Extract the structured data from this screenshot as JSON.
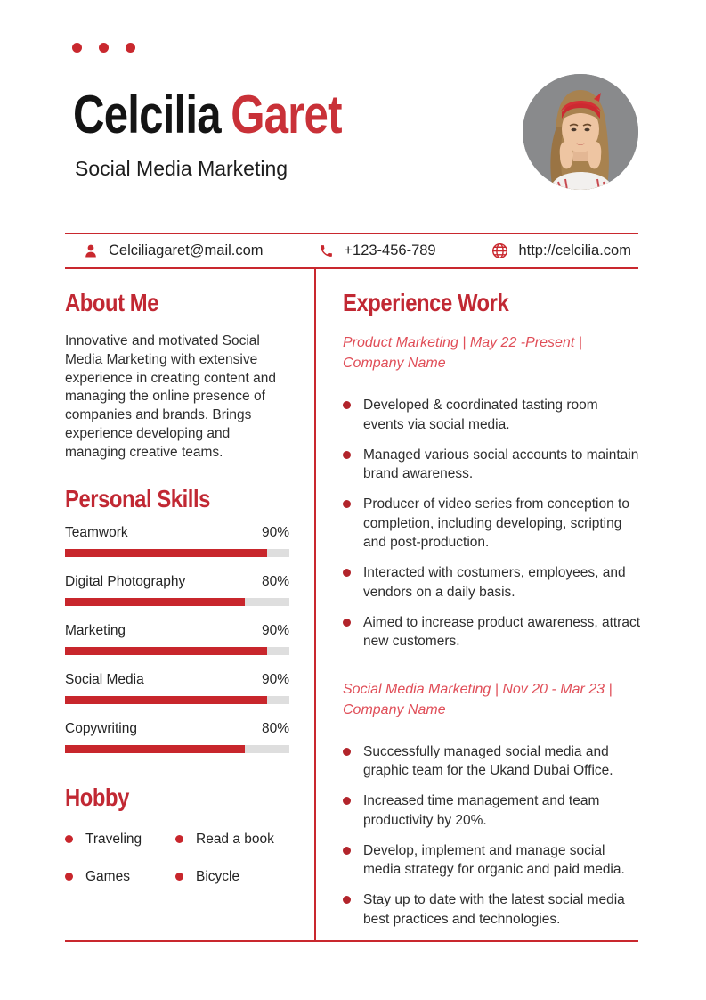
{
  "colors": {
    "accent": "#c9282e",
    "heading_red": "#c12833",
    "name_red": "#c93138",
    "subheading_red": "#e04e58",
    "track_gray": "#dedede",
    "text": "#2e2e2e"
  },
  "header": {
    "first_name": "Celcilia",
    "last_name": "Garet",
    "subtitle": "Social Media Marketing",
    "photo": "circular portrait of woman with red headband on gray background"
  },
  "contact": {
    "email": {
      "icon": "person-icon",
      "value": "Celciliagaret@mail.com"
    },
    "phone": {
      "icon": "phone-icon",
      "value": "+123-456-789"
    },
    "website": {
      "icon": "globe-icon",
      "value": "http://celcilia.com"
    }
  },
  "about": {
    "title": "About Me",
    "body": "Innovative and motivated Social Media Marketing with extensive experience in creating content and managing the online presence of companies and brands. Brings experience developing and managing creative teams."
  },
  "skills": {
    "title": "Personal Skills",
    "items": [
      {
        "label": "Teamwork",
        "percent": 90,
        "percent_label": "90%"
      },
      {
        "label": "Digital Photography",
        "percent": 80,
        "percent_label": "80%"
      },
      {
        "label": "Marketing",
        "percent": 90,
        "percent_label": "90%"
      },
      {
        "label": "Social Media",
        "percent": 90,
        "percent_label": "90%"
      },
      {
        "label": "Copywriting",
        "percent": 80,
        "percent_label": "80%"
      }
    ]
  },
  "hobby": {
    "title": "Hobby",
    "items": [
      "Traveling",
      "Read a book",
      "Games",
      "Bicycle"
    ]
  },
  "experience": {
    "title": "Experience Work",
    "jobs": [
      {
        "heading": "Product Marketing | May 22 -Present | Company Name",
        "bullets": [
          "Developed & coordinated tasting room events via social media.",
          "Managed various social accounts to maintain brand awareness.",
          "Producer of video series from conception to completion, including developing, scripting and post-production.",
          "Interacted with costumers, employees, and vendors on a daily basis.",
          "Aimed to increase product awareness, attract new customers."
        ]
      },
      {
        "heading": "Social Media Marketing | Nov 20 - Mar 23 | Company Name",
        "bullets": [
          "Successfully managed social media and graphic team for the Ukand Dubai Office.",
          "Increased time management and team productivity by 20%.",
          "Develop, implement and manage social media strategy for organic and paid media.",
          "Stay up to date with the latest social media best practices and technologies."
        ]
      }
    ]
  }
}
